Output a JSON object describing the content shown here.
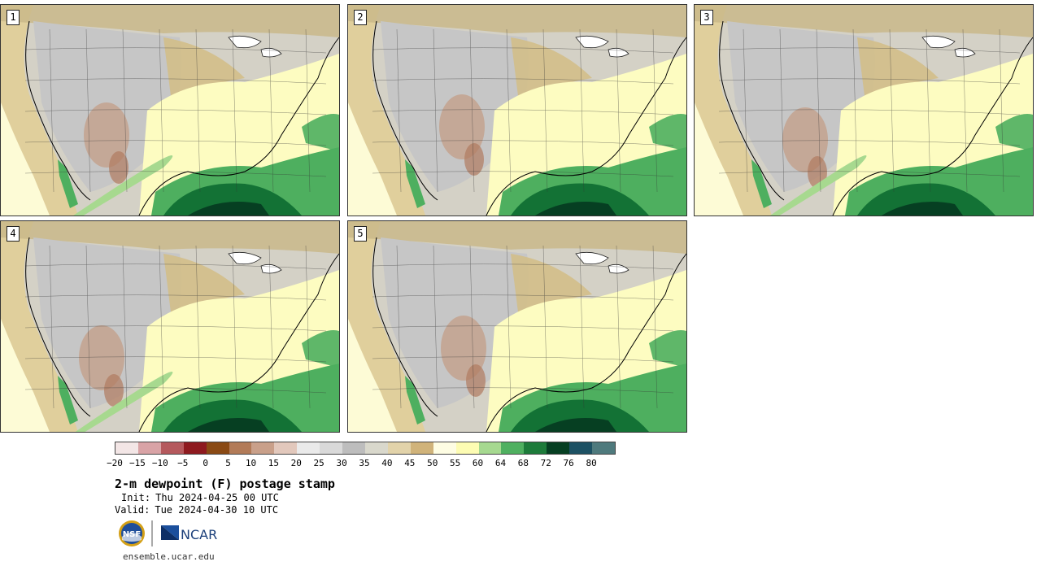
{
  "panels": [
    {
      "label": "1",
      "variant": 0
    },
    {
      "label": "2",
      "variant": 1
    },
    {
      "label": "3",
      "variant": 2
    },
    {
      "label": "4",
      "variant": 3
    },
    {
      "label": "5",
      "variant": 4
    }
  ],
  "legend": {
    "colors": [
      "#f3e6e6",
      "#d9a3a6",
      "#b5595d",
      "#8e1a1f",
      "#8a4a14",
      "#b27b58",
      "#c9a08a",
      "#e2c8bc",
      "#eaeaea",
      "#d9d9d9",
      "#bdbdbd",
      "#d9d8cc",
      "#e2d3aa",
      "#d0b37a",
      "#fefde3",
      "#fdfcb3",
      "#a6d990",
      "#4fb060",
      "#1d7b3a",
      "#063f22",
      "#1d5163",
      "#4f7a7d"
    ],
    "ticks": [
      "−20",
      "−15",
      "−10",
      "−5",
      "0",
      "5",
      "10",
      "15",
      "20",
      "25",
      "30",
      "35",
      "40",
      "45",
      "50",
      "55",
      "60",
      "64",
      "68",
      "72",
      "76",
      "80"
    ]
  },
  "title": "2-m dewpoint (F) postage stamp",
  "init_label": "Init:",
  "init_value": "Thu 2024-04-25 00 UTC",
  "valid_label": "Valid:",
  "valid_value": "Tue 2024-04-30 10 UTC",
  "logos": {
    "nsf": "NSF",
    "ncar": "NCAR"
  },
  "url": "ensemble.ucar.edu"
}
